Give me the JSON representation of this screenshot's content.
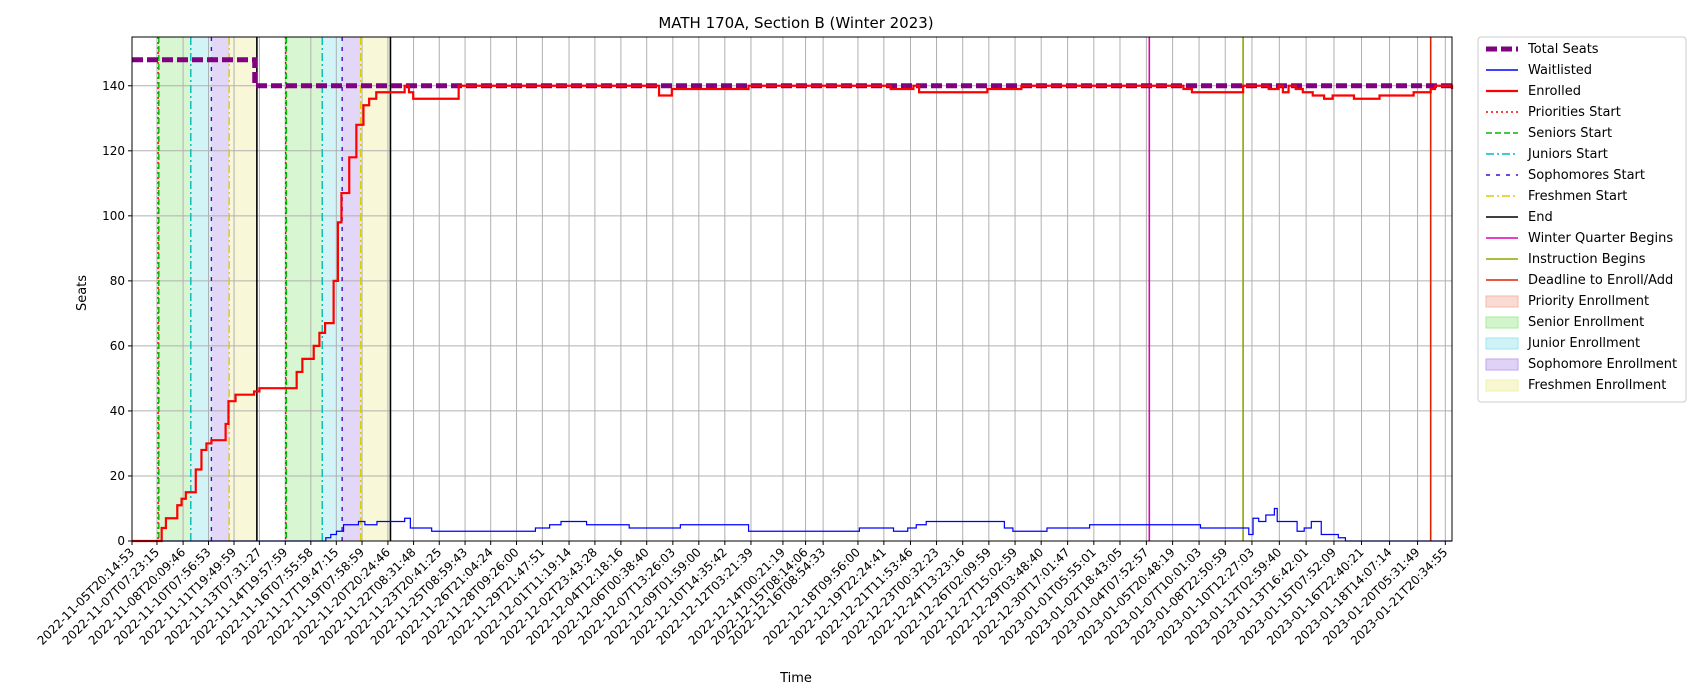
{
  "chart_data": {
    "type": "line",
    "title": "MATH 170A, Section B (Winter 2023)",
    "xlabel": "Time",
    "ylabel": "Seats",
    "ylim": [
      0,
      155
    ],
    "yticks": [
      0,
      20,
      40,
      60,
      80,
      100,
      120,
      140
    ],
    "xlim": [
      "2022-11-05T20:14:53",
      "2023-01-22T06:00:00"
    ],
    "grid": true,
    "legend_position": "outside-right",
    "xtick_labels": [
      "2022-11-05T20:14:53",
      "2022-11-07T07:23:15",
      "2022-11-08T20:09:46",
      "2022-11-10T07:56:53",
      "2022-11-11T19:49:59",
      "2022-11-13T07:31:27",
      "2022-11-14T19:57:59",
      "2022-11-16T07:55:58",
      "2022-11-17T19:47:15",
      "2022-11-19T07:58:59",
      "2022-11-20T20:24:46",
      "2022-11-22T08:31:48",
      "2022-11-23T20:41:25",
      "2022-11-25T08:59:43",
      "2022-11-26T21:04:24",
      "2022-11-28T09:26:00",
      "2022-11-29T21:47:51",
      "2022-12-01T11:19:14",
      "2022-12-02T23:43:28",
      "2022-12-04T12:18:16",
      "2022-12-06T00:38:40",
      "2022-12-07T13:26:03",
      "2022-12-09T01:59:00",
      "2022-12-10T14:35:42",
      "2022-12-12T03:21:39",
      "2022-12-14T00:21:19",
      "2022-12-15T08:14:06",
      "2022-12-16T08:54:33",
      "2022-12-18T09:56:00",
      "2022-12-19T22:24:41",
      "2022-12-21T11:53:46",
      "2022-12-23T00:32:23",
      "2022-12-24T13:23:16",
      "2022-12-26T02:09:59",
      "2022-12-27T15:02:59",
      "2022-12-29T03:48:40",
      "2022-12-30T17:01:47",
      "2023-01-01T05:55:01",
      "2023-01-02T18:43:05",
      "2023-01-04T07:52:57",
      "2023-01-05T20:48:19",
      "2023-01-07T10:01:03",
      "2023-01-08T22:50:59",
      "2023-01-10T12:27:03",
      "2023-01-12T02:59:40",
      "2023-01-13T16:42:01",
      "2023-01-15T07:52:09",
      "2023-01-16T22:40:21",
      "2023-01-18T14:07:14",
      "2023-01-20T05:31:49",
      "2023-01-21T20:34:55"
    ],
    "series": [
      {
        "name": "Total Seats",
        "color": "#800080",
        "style": "dashed-thick",
        "x": [
          "2022-11-05T20:14:53",
          "2022-11-13T01:00:00",
          "2022-11-13T01:00:00",
          "2023-01-22T06:00:00"
        ],
        "y": [
          148,
          148,
          140,
          140
        ]
      },
      {
        "name": "Waitlisted",
        "color": "#0000ff",
        "style": "solid-thin",
        "x": [
          "2022-11-05T20:14:53",
          "2022-11-17T02:00:00",
          "2022-11-17T05:00:00",
          "2022-11-17T12:00:00",
          "2022-11-17T20:00:00",
          "2022-11-18T06:00:00",
          "2022-11-19T03:00:00",
          "2022-11-19T12:00:00",
          "2022-11-20T05:00:00",
          "2022-11-21T20:00:00",
          "2022-11-22T04:00:00",
          "2022-11-22T20:00:00",
          "2022-11-23T10:00:00",
          "2022-11-29T00:00:00",
          "2022-11-29T12:00:00",
          "2022-11-30T08:00:00",
          "2022-12-01T00:00:00",
          "2022-12-02T12:00:00",
          "2022-12-05T00:00:00",
          "2022-12-08T00:00:00",
          "2022-12-12T00:00:00",
          "2022-12-18T12:00:00",
          "2022-12-19T12:00:00",
          "2022-12-20T12:00:00",
          "2022-12-21T08:00:00",
          "2022-12-21T20:00:00",
          "2022-12-22T10:00:00",
          "2022-12-27T00:00:00",
          "2022-12-27T12:00:00",
          "2022-12-29T12:00:00",
          "2023-01-01T00:00:00",
          "2023-01-07T12:00:00",
          "2023-01-10T08:00:00",
          "2023-01-10T14:00:00",
          "2023-01-10T22:00:00",
          "2023-01-11T08:00:00",
          "2023-01-11T20:00:00",
          "2023-01-12T00:00:00",
          "2023-01-12T10:00:00",
          "2023-01-13T04:00:00",
          "2023-01-13T14:00:00",
          "2023-01-14T00:00:00",
          "2023-01-14T14:00:00",
          "2023-01-15T14:00:00",
          "2023-01-16T00:00:00",
          "2023-01-22T06:00:00"
        ],
        "y": [
          0,
          0,
          1,
          2,
          3,
          5,
          6,
          5,
          6,
          7,
          4,
          4,
          3,
          3,
          4,
          5,
          6,
          5,
          4,
          5,
          3,
          4,
          4,
          3,
          4,
          5,
          6,
          4,
          3,
          4,
          5,
          4,
          2,
          7,
          6,
          8,
          10,
          6,
          6,
          3,
          4,
          6,
          2,
          1,
          0,
          0
        ]
      },
      {
        "name": "Enrolled",
        "color": "#ff0000",
        "style": "solid-thick",
        "x": [
          "2022-11-05T20:14:53",
          "2022-11-07T10:00:00",
          "2022-11-07T14:00:00",
          "2022-11-07T20:00:00",
          "2022-11-08T05:00:00",
          "2022-11-08T12:00:00",
          "2022-11-08T18:00:00",
          "2022-11-09T00:00:00",
          "2022-11-09T06:00:00",
          "2022-11-09T14:00:00",
          "2022-11-09T22:00:00",
          "2022-11-10T05:00:00",
          "2022-11-10T12:00:00",
          "2022-11-11T00:00:00",
          "2022-11-11T08:00:00",
          "2022-11-11T12:00:00",
          "2022-11-11T22:00:00",
          "2022-11-12T12:00:00",
          "2022-11-13T00:00:00",
          "2022-11-13T07:31:27",
          "2022-11-15T05:00:00",
          "2022-11-15T12:00:00",
          "2022-11-15T20:00:00",
          "2022-11-16T06:00:00",
          "2022-11-16T12:00:00",
          "2022-11-16T20:00:00",
          "2022-11-17T04:00:00",
          "2022-11-17T10:00:00",
          "2022-11-17T16:00:00",
          "2022-11-17T22:00:00",
          "2022-11-18T03:00:00",
          "2022-11-18T08:00:00",
          "2022-11-18T14:00:00",
          "2022-11-19T00:00:00",
          "2022-11-19T10:00:00",
          "2022-11-19T18:00:00",
          "2022-11-20T04:00:00",
          "2022-11-21T20:00:00",
          "2022-11-22T02:00:00",
          "2022-11-22T08:00:00",
          "2022-11-25T00:00:00",
          "2022-12-02T00:00:00",
          "2022-12-06T12:00:00",
          "2022-12-06T18:00:00",
          "2022-12-07T06:00:00",
          "2022-12-07T12:00:00",
          "2022-12-12T00:00:00",
          "2022-12-20T00:00:00",
          "2022-12-20T08:00:00",
          "2022-12-21T12:00:00",
          "2022-12-21T16:00:00",
          "2022-12-22T00:00:00",
          "2022-12-26T00:00:00",
          "2022-12-28T00:00:00",
          "2023-01-05T00:00:00",
          "2023-01-06T12:00:00",
          "2023-01-07T00:00:00",
          "2023-01-10T00:00:00",
          "2023-01-11T12:00:00",
          "2023-01-12T02:00:00",
          "2023-01-12T08:00:00",
          "2023-01-12T16:00:00",
          "2023-01-13T02:00:00",
          "2023-01-13T12:00:00",
          "2023-01-14T02:00:00",
          "2023-01-14T18:00:00",
          "2023-01-15T06:00:00",
          "2023-01-16T12:00:00",
          "2023-01-17T00:00:00",
          "2023-01-18T00:00:00",
          "2023-01-19T00:00:00",
          "2023-01-20T00:00:00",
          "2023-01-20T12:00:00",
          "2023-01-21T00:00:00",
          "2023-01-21T06:00:00",
          "2023-01-22T06:00:00"
        ],
        "y": [
          0,
          0,
          4,
          7,
          7,
          11,
          13,
          15,
          15,
          22,
          28,
          30,
          31,
          31,
          36,
          43,
          45,
          45,
          46,
          47,
          47,
          52,
          56,
          56,
          60,
          64,
          67,
          67,
          80,
          98,
          107,
          107,
          118,
          128,
          134,
          136,
          138,
          140,
          138,
          136,
          140,
          140,
          140,
          137,
          137,
          139,
          140,
          140,
          139,
          139,
          140,
          138,
          139,
          140,
          140,
          139,
          138,
          140,
          139,
          140,
          138,
          140,
          139,
          138,
          137,
          136,
          137,
          136,
          136,
          137,
          137,
          138,
          138,
          139,
          140,
          139
        ]
      }
    ],
    "events": [
      {
        "name": "Priorities Start",
        "color": "#ff0000",
        "style": "dotted",
        "x": [
          "2022-11-07T09:00:00",
          "2022-11-14T20:30:00"
        ]
      },
      {
        "name": "Seniors Start",
        "color": "#00bb00",
        "style": "dashed",
        "x": [
          "2022-11-07T10:00:00",
          "2022-11-14T21:30:00"
        ]
      },
      {
        "name": "Juniors Start",
        "color": "#00bbbb",
        "style": "dashdot",
        "x": [
          "2022-11-09T07:00:00",
          "2022-11-17T00:00:00"
        ]
      },
      {
        "name": "Sophomores Start",
        "color": "#5500cc",
        "style": "densedash",
        "x": [
          "2022-11-10T12:00:00",
          "2022-11-18T04:00:00"
        ]
      },
      {
        "name": "Freshmen Start",
        "color": "#ddcc00",
        "style": "dashdot",
        "x": [
          "2022-11-11T13:00:00",
          "2022-11-19T06:00:00"
        ]
      },
      {
        "name": "End",
        "color": "#000000",
        "style": "solid",
        "x": [
          "2022-11-13T04:00:00",
          "2022-11-21T00:00:00"
        ]
      },
      {
        "name": "Winter Quarter Begins",
        "color": "#e000b0",
        "style": "solid",
        "x": [
          "2023-01-04T12:00:00"
        ]
      },
      {
        "name": "Instruction Begins",
        "color": "#88aa00",
        "style": "solid",
        "x": [
          "2023-01-10T00:00:00"
        ]
      },
      {
        "name": "Deadline to Enroll/Add",
        "color": "#dd2200",
        "style": "solid",
        "x": [
          "2023-01-21T00:00:00"
        ]
      }
    ],
    "spans": [
      {
        "name": "Priority Enrollment",
        "color": "#f4b8a8",
        "ranges": [
          [
            "2022-11-07T09:00:00",
            "2022-11-07T10:00:00"
          ],
          [
            "2022-11-14T20:30:00",
            "2022-11-14T21:30:00"
          ]
        ]
      },
      {
        "name": "Senior Enrollment",
        "color": "#a8ec98",
        "ranges": [
          [
            "2022-11-07T10:00:00",
            "2022-11-09T07:00:00"
          ],
          [
            "2022-11-14T21:30:00",
            "2022-11-17T00:00:00"
          ]
        ]
      },
      {
        "name": "Junior Enrollment",
        "color": "#9ee6ee",
        "ranges": [
          [
            "2022-11-09T07:00:00",
            "2022-11-10T12:00:00"
          ],
          [
            "2022-11-17T00:00:00",
            "2022-11-18T04:00:00"
          ]
        ]
      },
      {
        "name": "Sophomore Enrollment",
        "color": "#c0a6ee",
        "ranges": [
          [
            "2022-11-10T12:00:00",
            "2022-11-11T13:00:00"
          ],
          [
            "2022-11-18T04:00:00",
            "2022-11-19T06:00:00"
          ]
        ]
      },
      {
        "name": "Freshmen Enrollment",
        "color": "#f0f0a8",
        "ranges": [
          [
            "2022-11-11T13:00:00",
            "2022-11-13T04:00:00"
          ],
          [
            "2022-11-19T06:00:00",
            "2022-11-21T00:00:00"
          ]
        ]
      }
    ]
  }
}
